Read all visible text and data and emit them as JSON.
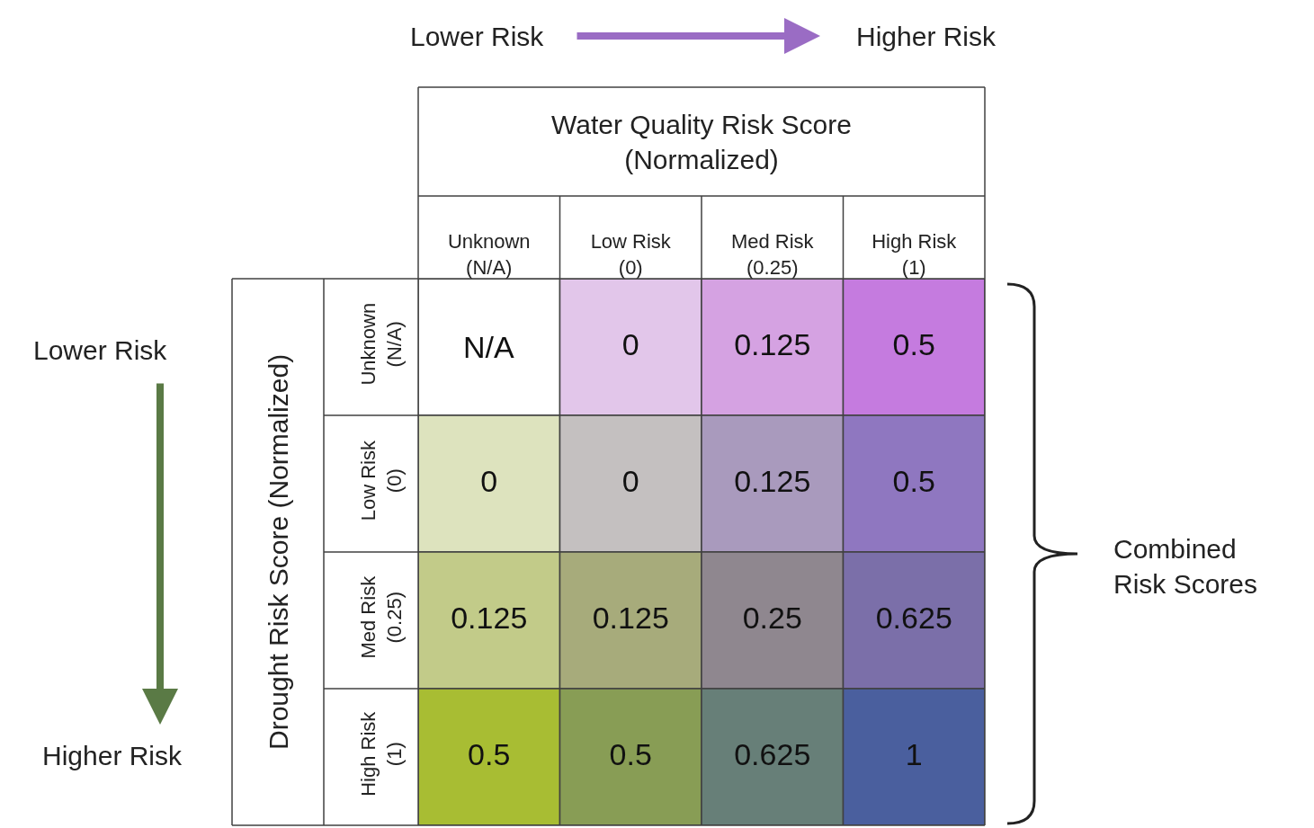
{
  "chart_data": {
    "type": "heatmap",
    "xlabel": "Water Quality Risk Score\n(Normalized)",
    "ylabel": "Drought Risk Score (Normalized)",
    "categories": [
      "Unknown\n(N/A)",
      "Low Risk\n(0)",
      "Med Risk\n(0.25)",
      "High Risk\n(1)"
    ],
    "y_categories": [
      "Unknown\n(N/A)",
      "Low Risk\n(0)",
      "Med Risk\n(0.25)",
      "High Risk\n(1)"
    ],
    "cells": [
      [
        null,
        0,
        0.125,
        0.5
      ],
      [
        0,
        0,
        0.125,
        0.5
      ],
      [
        0.125,
        0.125,
        0.25,
        0.625
      ],
      [
        0.5,
        0.5,
        0.625,
        1
      ]
    ],
    "data_labels": true,
    "colors": [
      [
        "#ffffff",
        "#e2c6ea",
        "#d5a2e2",
        "#c57bdf"
      ],
      [
        "#dde3be",
        "#c4c0c0",
        "#a99abd",
        "#8f77c0"
      ],
      [
        "#c2cb89",
        "#a7ab7b",
        "#8f878f",
        "#7b6fa9"
      ],
      [
        "#a8bd33",
        "#889d55",
        "#677f78",
        "#4a5f9e"
      ]
    ],
    "annotations": [
      "Lower Risk",
      "Higher Risk",
      "Lower Risk",
      "Higher Risk",
      "Combined\nRisk Scores",
      "N/A"
    ]
  }
}
